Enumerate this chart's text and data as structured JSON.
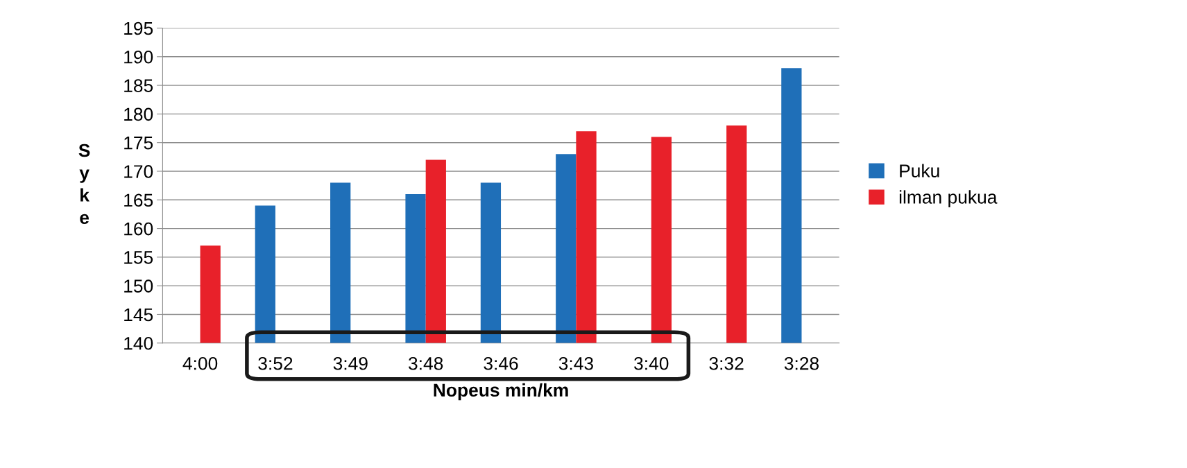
{
  "chart_data": {
    "type": "bar",
    "xlabel": "Nopeus min/km",
    "ylabel": "Syke",
    "categories": [
      "4:00",
      "3:52",
      "3:49",
      "3:48",
      "3:46",
      "3:43",
      "3:40",
      "3:32",
      "3:28"
    ],
    "series": [
      {
        "name": "Puku",
        "color": "#1f6fb8",
        "values": [
          null,
          164,
          168,
          166,
          168,
          173,
          null,
          null,
          188
        ]
      },
      {
        "name": "ilman pukua",
        "color": "#e8212a",
        "values": [
          157,
          null,
          null,
          172,
          null,
          177,
          176,
          178,
          null
        ]
      }
    ],
    "ylim": [
      140,
      195
    ],
    "yticks": [
      140,
      145,
      150,
      155,
      160,
      165,
      170,
      175,
      180,
      185,
      190,
      195
    ],
    "grid": "y",
    "legend": "right"
  }
}
